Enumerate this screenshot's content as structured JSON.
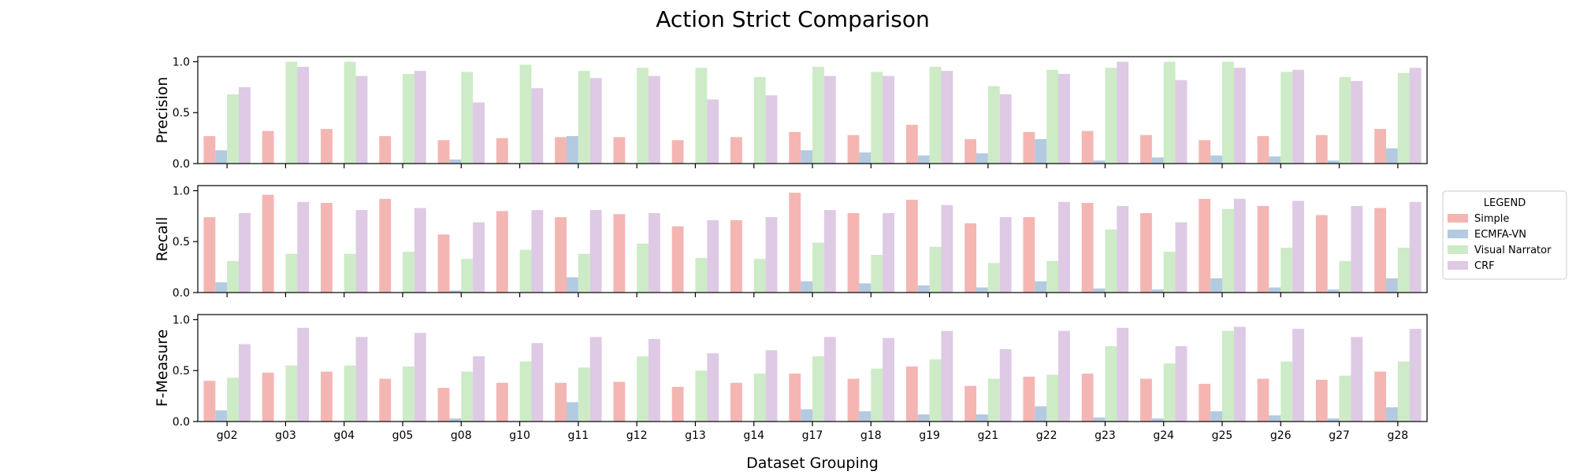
{
  "chart_data": {
    "type": "bar",
    "title": "Action Strict Comparison",
    "xlabel": "Dataset Grouping",
    "categories": [
      "g02",
      "g03",
      "g04",
      "g05",
      "g08",
      "g10",
      "g11",
      "g12",
      "g13",
      "g14",
      "g17",
      "g18",
      "g19",
      "g21",
      "g22",
      "g23",
      "g24",
      "g25",
      "g26",
      "g27",
      "g28"
    ],
    "legend": {
      "title": "LEGEND",
      "placement": "right",
      "entries": [
        "Simple",
        "ECMFA-VN",
        "Visual Narrator",
        "CRF"
      ]
    },
    "colors": {
      "Simple": "#f4b6b3",
      "ECMFA-VN": "#b3cae0",
      "Visual Narrator": "#ccebc6",
      "CRF": "#decae4"
    },
    "grid": false,
    "panels": [
      {
        "ylabel": "Precision",
        "ylim": [
          0,
          1.05
        ],
        "yticks": [
          "0.0",
          "0.5",
          "1.0"
        ],
        "series": [
          {
            "name": "Simple",
            "values": [
              0.27,
              0.32,
              0.34,
              0.27,
              0.23,
              0.25,
              0.26,
              0.26,
              0.23,
              0.26,
              0.31,
              0.28,
              0.38,
              0.24,
              0.31,
              0.32,
              0.28,
              0.23,
              0.27,
              0.28,
              0.34
            ]
          },
          {
            "name": "ECMFA-VN",
            "values": [
              0.13,
              0.0,
              0.0,
              0.0,
              0.04,
              0.0,
              0.27,
              0.0,
              0.0,
              0.0,
              0.13,
              0.11,
              0.08,
              0.1,
              0.24,
              0.03,
              0.06,
              0.08,
              0.07,
              0.03,
              0.15
            ]
          },
          {
            "name": "Visual Narrator",
            "values": [
              0.68,
              1.0,
              1.0,
              0.88,
              0.9,
              0.97,
              0.91,
              0.94,
              0.94,
              0.85,
              0.95,
              0.9,
              0.95,
              0.76,
              0.92,
              0.94,
              1.0,
              1.0,
              0.9,
              0.85,
              0.89
            ]
          },
          {
            "name": "CRF",
            "values": [
              0.75,
              0.95,
              0.86,
              0.91,
              0.6,
              0.74,
              0.84,
              0.86,
              0.63,
              0.67,
              0.86,
              0.86,
              0.91,
              0.68,
              0.88,
              1.0,
              0.82,
              0.94,
              0.92,
              0.81,
              0.94
            ]
          }
        ]
      },
      {
        "ylabel": "Recall",
        "ylim": [
          0,
          1.05
        ],
        "yticks": [
          "0.0",
          "0.5",
          "1.0"
        ],
        "series": [
          {
            "name": "Simple",
            "values": [
              0.74,
              0.96,
              0.88,
              0.92,
              0.57,
              0.8,
              0.74,
              0.77,
              0.65,
              0.71,
              0.98,
              0.78,
              0.91,
              0.68,
              0.74,
              0.88,
              0.78,
              0.92,
              0.85,
              0.76,
              0.83
            ]
          },
          {
            "name": "ECMFA-VN",
            "values": [
              0.1,
              0.0,
              0.0,
              0.0,
              0.02,
              0.0,
              0.15,
              0.0,
              0.0,
              0.0,
              0.11,
              0.09,
              0.07,
              0.05,
              0.11,
              0.04,
              0.03,
              0.14,
              0.05,
              0.03,
              0.14
            ]
          },
          {
            "name": "Visual Narrator",
            "values": [
              0.31,
              0.38,
              0.38,
              0.4,
              0.33,
              0.42,
              0.38,
              0.48,
              0.34,
              0.33,
              0.49,
              0.37,
              0.45,
              0.29,
              0.31,
              0.62,
              0.4,
              0.82,
              0.44,
              0.31,
              0.44
            ]
          },
          {
            "name": "CRF",
            "values": [
              0.78,
              0.89,
              0.81,
              0.83,
              0.69,
              0.81,
              0.81,
              0.78,
              0.71,
              0.74,
              0.81,
              0.78,
              0.86,
              0.74,
              0.89,
              0.85,
              0.69,
              0.92,
              0.9,
              0.85,
              0.89
            ]
          }
        ]
      },
      {
        "ylabel": "F-Measure",
        "ylim": [
          0,
          1.05
        ],
        "yticks": [
          "0.0",
          "0.5",
          "1.0"
        ],
        "series": [
          {
            "name": "Simple",
            "values": [
              0.4,
              0.48,
              0.49,
              0.42,
              0.33,
              0.38,
              0.38,
              0.39,
              0.34,
              0.38,
              0.47,
              0.42,
              0.54,
              0.35,
              0.44,
              0.47,
              0.42,
              0.37,
              0.42,
              0.41,
              0.49
            ]
          },
          {
            "name": "ECMFA-VN",
            "values": [
              0.11,
              0.0,
              0.0,
              0.0,
              0.03,
              0.0,
              0.19,
              0.0,
              0.0,
              0.0,
              0.12,
              0.1,
              0.07,
              0.07,
              0.15,
              0.04,
              0.03,
              0.1,
              0.06,
              0.03,
              0.14
            ]
          },
          {
            "name": "Visual Narrator",
            "values": [
              0.43,
              0.55,
              0.55,
              0.54,
              0.49,
              0.59,
              0.53,
              0.64,
              0.5,
              0.47,
              0.64,
              0.52,
              0.61,
              0.42,
              0.46,
              0.74,
              0.57,
              0.89,
              0.59,
              0.45,
              0.59
            ]
          },
          {
            "name": "CRF",
            "values": [
              0.76,
              0.92,
              0.83,
              0.87,
              0.64,
              0.77,
              0.83,
              0.81,
              0.67,
              0.7,
              0.83,
              0.82,
              0.89,
              0.71,
              0.89,
              0.92,
              0.74,
              0.93,
              0.91,
              0.83,
              0.91
            ]
          }
        ]
      }
    ]
  }
}
